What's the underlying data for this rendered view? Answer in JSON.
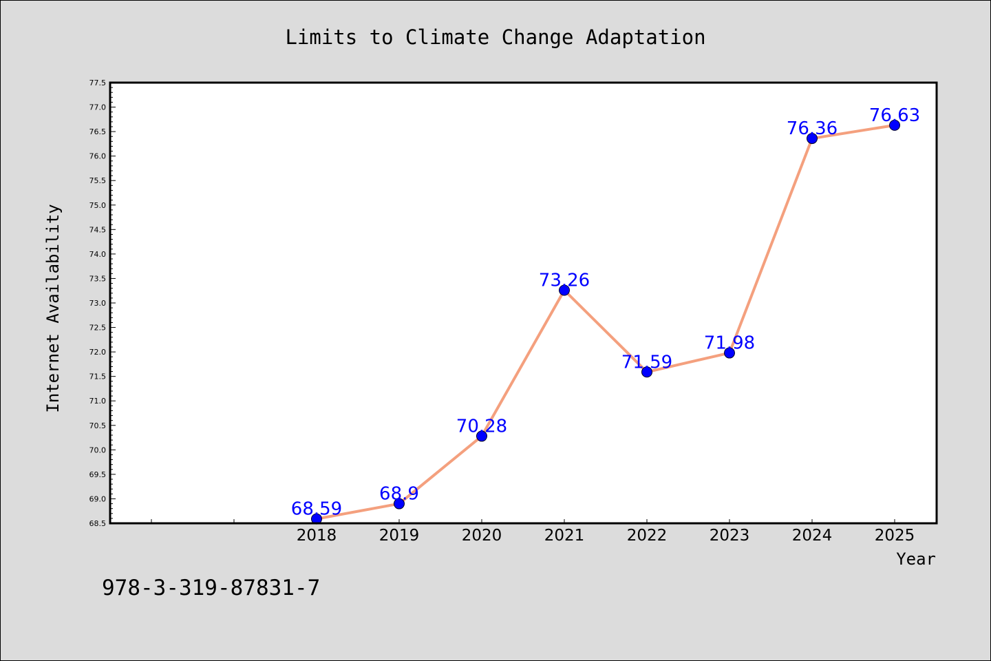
{
  "chart_data": {
    "type": "line",
    "title": "Limits to Climate Change Adaptation",
    "xlabel": "Year",
    "ylabel": "Internet Availability",
    "categories": [
      "2018",
      "2019",
      "2020",
      "2021",
      "2022",
      "2023",
      "2024",
      "2025"
    ],
    "series": [
      {
        "values": [
          68.59,
          68.9,
          70.28,
          73.26,
          71.59,
          71.98,
          76.36,
          76.63
        ],
        "line_color": "#f4a07e",
        "marker_color": "#0000ff"
      }
    ],
    "data_labels": [
      "68.59",
      "68.9",
      "70.28",
      "73.26",
      "71.59",
      "71.98",
      "76.36",
      "76.63"
    ],
    "ylim": [
      68.5,
      77.5
    ],
    "y_ticks": [
      "68.5",
      "69.0",
      "69.5",
      "70.0",
      "70.5",
      "71.0",
      "71.5",
      "72.0",
      "72.5",
      "73.0",
      "73.5",
      "74.0",
      "74.5",
      "75.0",
      "75.5",
      "76.0",
      "76.5",
      "77.0",
      "77.5"
    ],
    "grid": false,
    "legend": "none",
    "background_color": "#dcdcdc",
    "plot_background": "#ffffff"
  },
  "annotation": {
    "isbn": "978-3-319-87831-7"
  }
}
